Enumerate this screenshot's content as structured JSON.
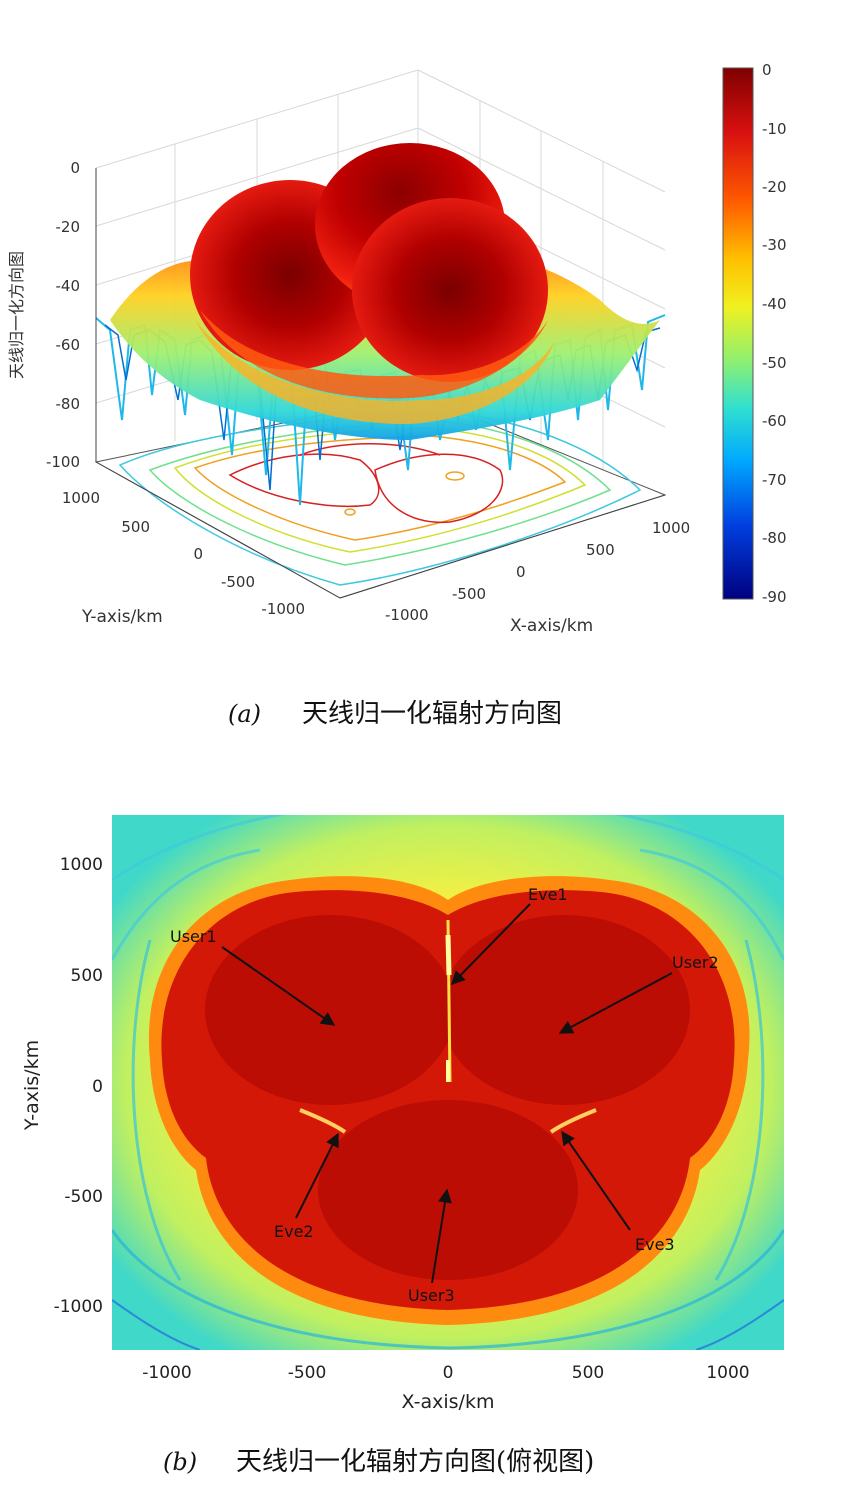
{
  "figure_a": {
    "caption_tag": "(a)",
    "caption_text": "天线归一化辐射方向图",
    "zlabel": "天线归一化方向图",
    "xlabel": "X-axis/km",
    "ylabel": "Y-axis/km",
    "z_ticks": [
      "0",
      "-20",
      "-40",
      "-60",
      "-80",
      "-100"
    ],
    "x_ticks": [
      "-1000",
      "-500",
      "0",
      "500",
      "1000"
    ],
    "y_ticks": [
      "1000",
      "500",
      "0",
      "-500",
      "-1000"
    ],
    "colorbar_ticks": [
      "0",
      "-10",
      "-20",
      "-30",
      "-40",
      "-50",
      "-60",
      "-70",
      "-80",
      "-90"
    ]
  },
  "figure_b": {
    "caption_tag": "(b)",
    "caption_text": "天线归一化辐射方向图(俯视图)",
    "xlabel": "X-axis/km",
    "ylabel": "Y-axis/km",
    "x_ticks": [
      "-1000",
      "-500",
      "0",
      "500",
      "1000"
    ],
    "y_ticks": [
      "1000",
      "500",
      "0",
      "-500",
      "-1000"
    ],
    "annotations": {
      "user1": "User1",
      "user2": "User2",
      "user3": "User3",
      "eve1": "Eve1",
      "eve2": "Eve2",
      "eve3": "Eve3"
    }
  },
  "chart_data": [
    {
      "type": "surface",
      "zlabel": "天线归一化方向图",
      "xlabel": "X-axis/km",
      "ylabel": "Y-axis/km",
      "xlim": [
        -1200,
        1200
      ],
      "ylim": [
        -1200,
        1200
      ],
      "zlim": [
        -100,
        0
      ],
      "colorbar_range": [
        -90,
        0
      ],
      "colormap": "jet",
      "lobes": [
        {
          "x": -400,
          "y": 200,
          "peak_db": 0
        },
        {
          "x": 400,
          "y": 200,
          "peak_db": 0
        },
        {
          "x": 0,
          "y": -400,
          "peak_db": 0
        }
      ]
    },
    {
      "type": "heatmap",
      "xlabel": "X-axis/km",
      "ylabel": "Y-axis/km",
      "xlim": [
        -1200,
        1200
      ],
      "ylim": [
        -1200,
        1200
      ],
      "colormap": "jet",
      "points": [
        {
          "label": "User1",
          "x": -400,
          "y": 200
        },
        {
          "label": "User2",
          "x": 400,
          "y": 200
        },
        {
          "label": "User3",
          "x": 0,
          "y": -400
        },
        {
          "label": "Eve1",
          "x": 0,
          "y": 500
        },
        {
          "label": "Eve2",
          "x": -400,
          "y": -200
        },
        {
          "label": "Eve3",
          "x": 400,
          "y": -200
        }
      ]
    }
  ]
}
